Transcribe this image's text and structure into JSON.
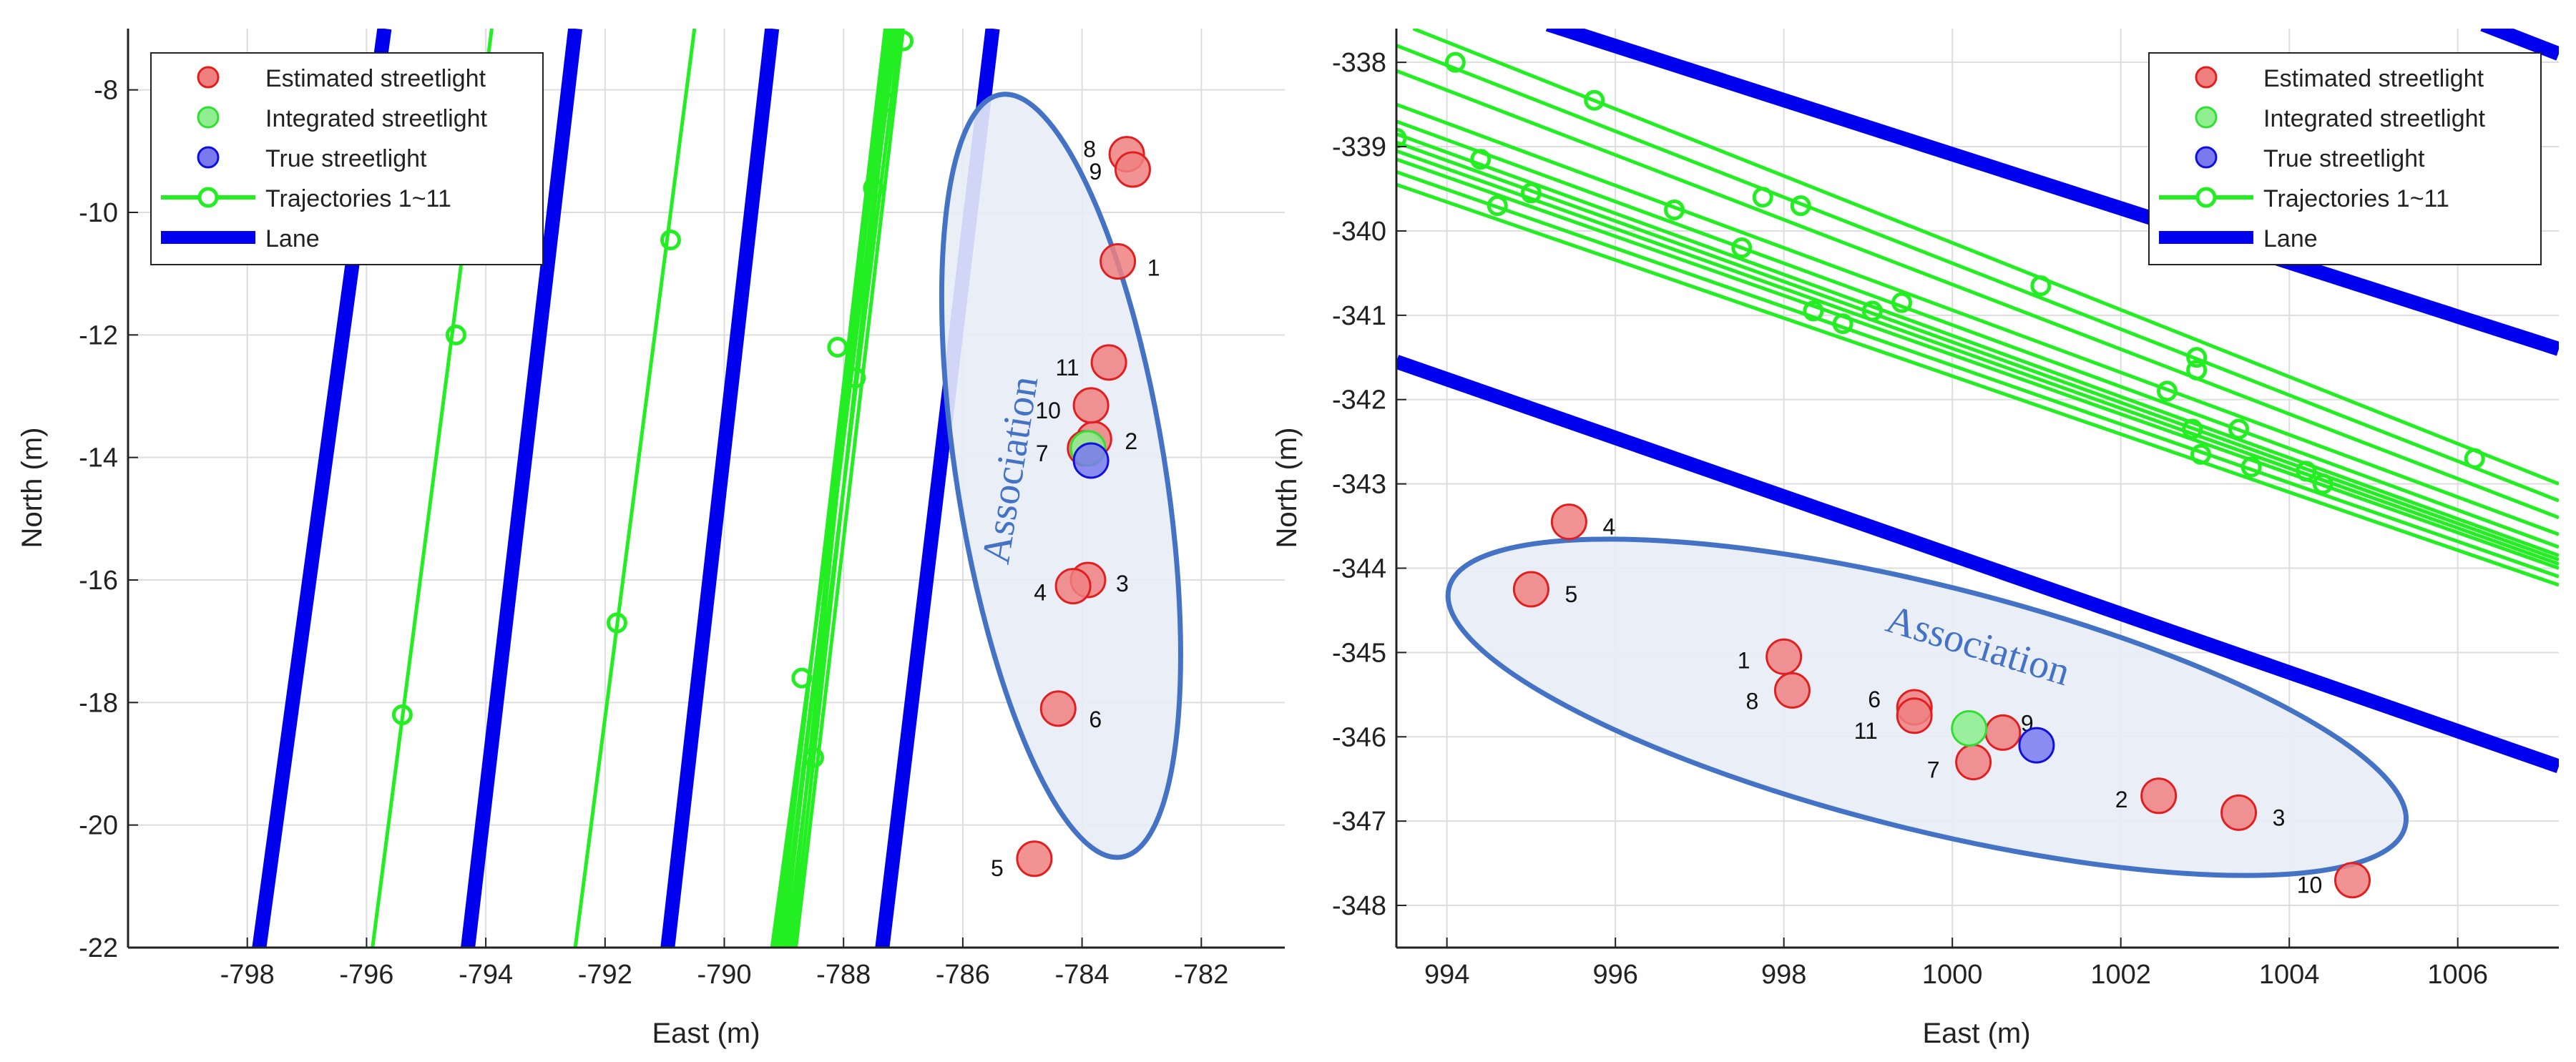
{
  "chart_data": [
    {
      "type": "scatter",
      "panel": "left",
      "xlabel": "East (m)",
      "ylabel": "North (m)",
      "xlim": [
        -800,
        -780.6
      ],
      "ylim": [
        -22,
        -7
      ],
      "xticks": [
        -798,
        -796,
        -794,
        -792,
        -790,
        -788,
        -786,
        -784,
        -782
      ],
      "yticks": [
        -8,
        -10,
        -12,
        -14,
        -16,
        -18,
        -20,
        -22
      ],
      "grid": true,
      "legend": {
        "placement": "top-left",
        "entries": [
          {
            "label": "Estimated streetlight",
            "kind": "estimated"
          },
          {
            "label": "Integrated streetlight",
            "kind": "integrated"
          },
          {
            "label": "True streetlight",
            "kind": "true"
          },
          {
            "label": "Trajectories 1~11",
            "kind": "trajectory"
          },
          {
            "label": "Lane",
            "kind": "lane"
          }
        ]
      },
      "annotation": {
        "text": "Association",
        "ellipse": {
          "cx": -784.35,
          "cy": -14.3,
          "rx": 1.75,
          "ry": 6.3,
          "angle_deg": -9
        }
      },
      "lanes": [
        {
          "x1": -797.8,
          "y1": -22,
          "x2": -795.7,
          "y2": -7
        },
        {
          "x1": -794.3,
          "y1": -22,
          "x2": -792.5,
          "y2": -7
        },
        {
          "x1": -790.95,
          "y1": -22,
          "x2": -789.2,
          "y2": -7
        },
        {
          "x1": -787.35,
          "y1": -22,
          "x2": -785.5,
          "y2": -7
        }
      ],
      "trajectories": [
        {
          "x1": -795.9,
          "y1": -22,
          "x2": -793.9,
          "y2": -7
        },
        {
          "x1": -792.5,
          "y1": -22,
          "x2": -790.5,
          "y2": -7
        },
        {
          "x1": -789.2,
          "y1": -22,
          "x2": -787.1,
          "y2": -7
        },
        {
          "x1": -789.15,
          "y1": -22,
          "x2": -787.2,
          "y2": -7
        },
        {
          "x1": -789.1,
          "y1": -22,
          "x2": -787.3,
          "y2": -7
        },
        {
          "x1": -789.05,
          "y1": -22,
          "x2": -787.15,
          "y2": -7
        },
        {
          "x1": -789.0,
          "y1": -22,
          "x2": -787.25,
          "y2": -7
        },
        {
          "x1": -788.95,
          "y1": -22,
          "x2": -787.05,
          "y2": -7
        },
        {
          "x1": -788.9,
          "y1": -22,
          "x2": -787.3,
          "y2": -7
        },
        {
          "x1": -788.85,
          "y1": -22,
          "x2": -787.15,
          "y2": -7
        },
        {
          "x1": -788.8,
          "y1": -22,
          "x2": -787.0,
          "y2": -7
        }
      ],
      "trajectory_samples": [
        [
          -795.4,
          -18.2
        ],
        [
          -794.5,
          -12.0
        ],
        [
          -791.8,
          -16.7
        ],
        [
          -790.9,
          -10.45
        ],
        [
          -788.7,
          -17.6
        ],
        [
          -788.5,
          -18.9
        ],
        [
          -788.1,
          -12.2
        ],
        [
          -787.8,
          -12.7
        ],
        [
          -787.0,
          -7.2
        ],
        [
          -787.3,
          -8.2
        ],
        [
          -787.5,
          -9.6
        ]
      ],
      "estimated": [
        {
          "id": "1",
          "x": -783.4,
          "y": -10.8
        },
        {
          "id": "2",
          "x": -783.8,
          "y": -13.7
        },
        {
          "id": "3",
          "x": -783.9,
          "y": -16.0
        },
        {
          "id": "4",
          "x": -784.15,
          "y": -16.1
        },
        {
          "id": "5",
          "x": -784.8,
          "y": -20.55
        },
        {
          "id": "6",
          "x": -784.4,
          "y": -18.1
        },
        {
          "id": "7",
          "x": -783.95,
          "y": -13.85
        },
        {
          "id": "8",
          "x": -783.25,
          "y": -9.05
        },
        {
          "id": "9",
          "x": -783.15,
          "y": -9.3
        },
        {
          "id": "10",
          "x": -783.85,
          "y": -13.15
        },
        {
          "id": "11",
          "x": -783.55,
          "y": -12.45
        }
      ],
      "integrated": [
        {
          "x": -783.9,
          "y": -13.85
        }
      ],
      "true_points": [
        {
          "x": -783.85,
          "y": -14.05
        }
      ]
    },
    {
      "type": "scatter",
      "panel": "right",
      "xlabel": "East (m)",
      "ylabel": "North (m)",
      "xlim": [
        993.4,
        1007.2
      ],
      "ylim": [
        -348.5,
        -337.6
      ],
      "xticks": [
        994,
        996,
        998,
        1000,
        1002,
        1004,
        1006
      ],
      "yticks": [
        -338,
        -339,
        -340,
        -341,
        -342,
        -343,
        -344,
        -345,
        -346,
        -347,
        -348
      ],
      "grid": true,
      "legend": {
        "placement": "top-right",
        "entries": [
          {
            "label": "Estimated streetlight",
            "kind": "estimated"
          },
          {
            "label": "Integrated streetlight",
            "kind": "integrated"
          },
          {
            "label": "True streetlight",
            "kind": "true"
          },
          {
            "label": "Trajectories 1~11",
            "kind": "trajectory"
          },
          {
            "label": "Lane",
            "kind": "lane"
          }
        ]
      },
      "annotation": {
        "text": "Association",
        "ellipse": {
          "cx": 999.7,
          "cy": -345.65,
          "rx": 5.85,
          "ry": 1.45,
          "angle_deg": 14
        }
      },
      "lanes": [
        {
          "x1": 995.2,
          "y1": -337.55,
          "x2": 1007.2,
          "y2": -341.4
        },
        {
          "x1": 993.4,
          "y1": -341.55,
          "x2": 1007.2,
          "y2": -346.35
        },
        {
          "x1": 1006.3,
          "y1": -337.55,
          "x2": 1007.2,
          "y2": -337.9
        }
      ],
      "trajectories": [
        {
          "x1": 993.6,
          "y1": -337.6,
          "x2": 1007.2,
          "y2": -343.0
        },
        {
          "x1": 993.4,
          "y1": -337.8,
          "x2": 1007.2,
          "y2": -343.2
        },
        {
          "x1": 993.4,
          "y1": -338.1,
          "x2": 1007.2,
          "y2": -343.4
        },
        {
          "x1": 993.4,
          "y1": -338.5,
          "x2": 1007.2,
          "y2": -343.6
        },
        {
          "x1": 993.4,
          "y1": -338.7,
          "x2": 1007.2,
          "y2": -343.75
        },
        {
          "x1": 993.4,
          "y1": -338.85,
          "x2": 1007.2,
          "y2": -343.85
        },
        {
          "x1": 993.4,
          "y1": -338.95,
          "x2": 1007.2,
          "y2": -343.9
        },
        {
          "x1": 993.4,
          "y1": -339.05,
          "x2": 1007.2,
          "y2": -343.95
        },
        {
          "x1": 993.4,
          "y1": -339.15,
          "x2": 1007.2,
          "y2": -344.0
        },
        {
          "x1": 993.4,
          "y1": -339.3,
          "x2": 1007.2,
          "y2": -344.1
        },
        {
          "x1": 993.4,
          "y1": -339.45,
          "x2": 1007.2,
          "y2": -344.2
        }
      ],
      "trajectory_samples": [
        [
          993.4,
          -338.9
        ],
        [
          994.1,
          -338.0
        ],
        [
          994.4,
          -339.15
        ],
        [
          994.6,
          -339.7
        ],
        [
          995.0,
          -339.55
        ],
        [
          995.75,
          -338.45
        ],
        [
          996.7,
          -339.75
        ],
        [
          997.5,
          -340.2
        ],
        [
          997.75,
          -339.6
        ],
        [
          998.2,
          -339.7
        ],
        [
          998.35,
          -340.95
        ],
        [
          998.7,
          -341.1
        ],
        [
          999.05,
          -340.95
        ],
        [
          999.4,
          -340.85
        ],
        [
          1001.05,
          -340.65
        ],
        [
          1002.55,
          -341.9
        ],
        [
          1002.85,
          -342.35
        ],
        [
          1002.9,
          -341.5
        ],
        [
          1002.95,
          -342.65
        ],
        [
          1003.4,
          -342.35
        ],
        [
          1003.55,
          -342.8
        ],
        [
          1004.2,
          -342.85
        ],
        [
          1004.4,
          -343.0
        ],
        [
          1006.2,
          -342.7
        ],
        [
          1002.9,
          -341.65
        ]
      ],
      "estimated": [
        {
          "id": "1",
          "x": 998.0,
          "y": -345.05
        },
        {
          "id": "2",
          "x": 1002.45,
          "y": -346.7
        },
        {
          "id": "3",
          "x": 1003.4,
          "y": -346.9
        },
        {
          "id": "4",
          "x": 995.45,
          "y": -343.45
        },
        {
          "id": "5",
          "x": 995.0,
          "y": -344.25
        },
        {
          "id": "6",
          "x": 999.55,
          "y": -345.65
        },
        {
          "id": "7",
          "x": 1000.25,
          "y": -346.3
        },
        {
          "id": "8",
          "x": 998.1,
          "y": -345.45
        },
        {
          "id": "9",
          "x": 1000.6,
          "y": -345.95
        },
        {
          "id": "10",
          "x": 1004.75,
          "y": -347.7
        },
        {
          "id": "11",
          "x": 999.55,
          "y": -345.75
        }
      ],
      "integrated": [
        {
          "x": 1000.2,
          "y": -345.9
        }
      ],
      "true_points": [
        {
          "x": 1001.0,
          "y": -346.1
        }
      ]
    }
  ],
  "colors": {
    "estimated_fill": "#f08080",
    "estimated_edge": "#e02020",
    "integrated_fill": "#90ee90",
    "integrated_edge": "#33dd33",
    "true_fill": "#7a7aee",
    "true_edge": "#1010dd",
    "trajectory": "#22ee22",
    "lane": "#0000ee",
    "ellipse_stroke": "#4472c4",
    "ellipse_fill": "#e8ecf6",
    "annotation_text": "#4472c4",
    "grid": "#dddddd"
  }
}
